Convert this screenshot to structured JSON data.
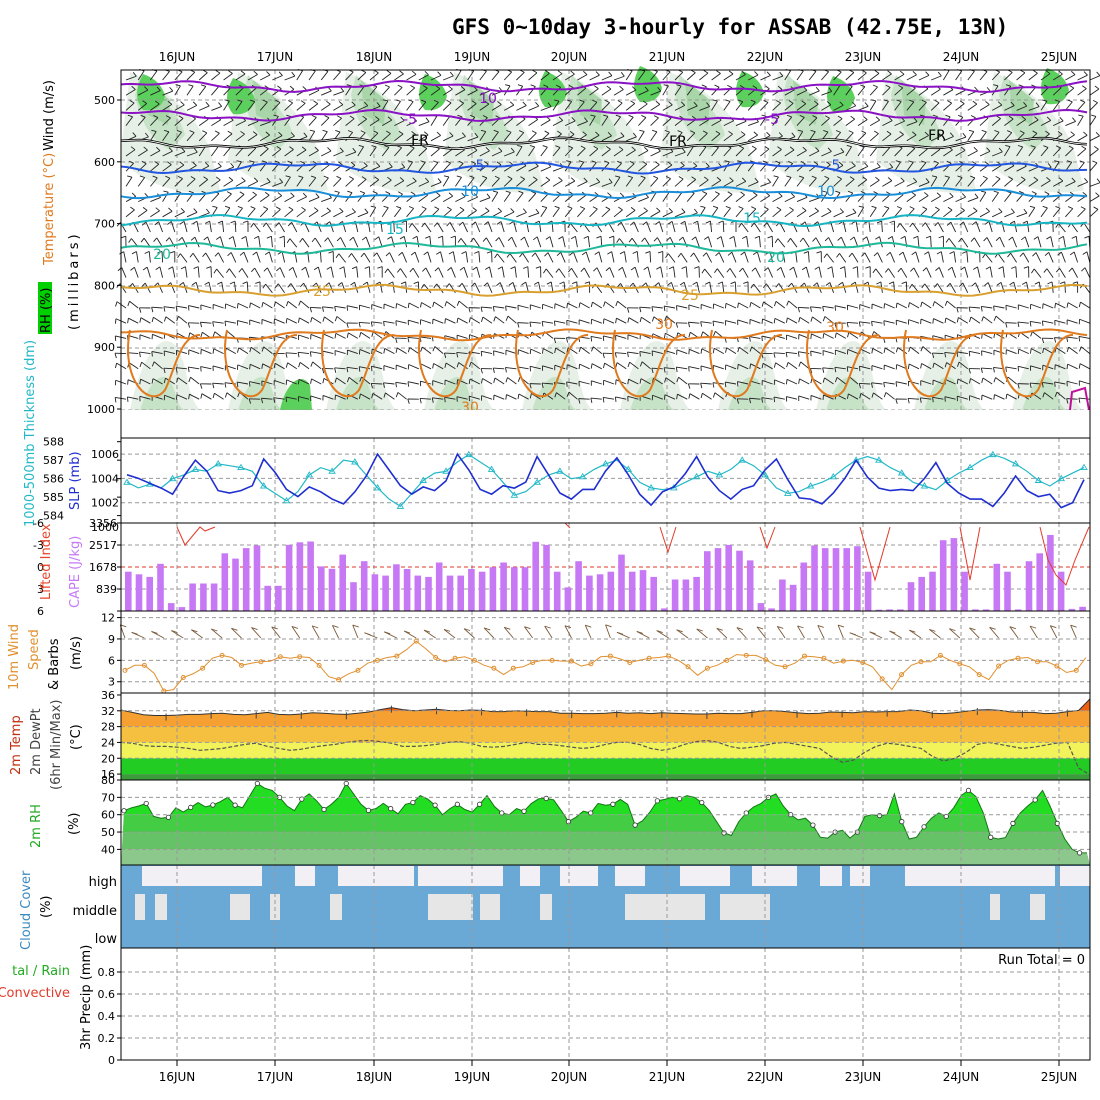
{
  "title": "GFS 0~10day 3-hourly for ASSAB (42.75E, 13N)",
  "dates": [
    "16JUN",
    "17JUN",
    "18JUN",
    "19JUN",
    "20JUN",
    "21JUN",
    "22JUN",
    "23JUN",
    "24JUN",
    "25JUN"
  ],
  "run_total_label": "Run Total = 0",
  "colors": {
    "rh_green": "#00d000",
    "t_orange": "#e07a1e",
    "t_cyan": "#17b5c4",
    "t_blue": "#2255e0",
    "t_purple": "#8a12c4",
    "slp_blue": "#1f2fcf",
    "thk_cyan": "#22b8c8",
    "cape_purple": "#c779f5",
    "li_red": "#e23a2a",
    "wind_orange": "#e09030",
    "rh2_green": "#22dd22",
    "cloud_blue": "#6aa9d6",
    "cloud_white": "#f2f0f5",
    "cloud_gray": "#e6e6e6"
  },
  "chart_data": [
    {
      "type": "heatmap",
      "panel": "upper-air",
      "labels": {
        "wind": "Wind (m/s)",
        "temp": "Temperature (°C)",
        "rh": "RH (%)",
        "y": "(millibars)"
      },
      "y_ticks": [
        500,
        600,
        700,
        800,
        900,
        1000
      ],
      "ylim": [
        1000,
        440
      ],
      "isotherms": [
        {
          "label": "-10",
          "pressure": 478,
          "color": "#8a12c4"
        },
        {
          "label": "-5",
          "pressure": 525,
          "color": "#8a12c4"
        },
        {
          "label": "FR",
          "pressure": 570,
          "color": "#000000"
        },
        {
          "label": "5",
          "pressure": 610,
          "color": "#2255e0"
        },
        {
          "label": "10",
          "pressure": 650,
          "color": "#1a8ed8"
        },
        {
          "label": "15",
          "pressure": 695,
          "color": "#17b5c4"
        },
        {
          "label": "20",
          "pressure": 740,
          "color": "#20b89a"
        },
        {
          "label": "25",
          "pressure": 808,
          "color": "#d9a030"
        },
        {
          "label": "30",
          "pressure": 880,
          "color": "#e07a1e"
        }
      ],
      "contour_labels": [
        "10",
        "-5",
        "FR",
        "5",
        "10",
        "15",
        "20",
        "25",
        "30",
        "30",
        "30"
      ]
    },
    {
      "type": "line",
      "panel": "slp-thickness",
      "labels": {
        "left": "1000-500mb Thickness (dm)",
        "right": "SLP (mb)"
      },
      "thickness_ticks": [
        584,
        585,
        586,
        587,
        588
      ],
      "slp_ticks": [
        1000,
        1002,
        1004,
        1006
      ],
      "series": [
        {
          "name": "SLP (mb)",
          "values": [
            1004.3,
            1004.0,
            1003.6,
            1003.2,
            1002.7,
            1004.2,
            1005.5,
            1004.6,
            1003.0,
            1002.8,
            1003.0,
            1003.4,
            1005.6,
            1004.5,
            1003.1,
            1002.5,
            1003.3,
            1002.9,
            1002.3,
            1001.9,
            1002.9,
            1004.2,
            1006.0,
            1004.7,
            1003.4,
            1002.7,
            1003.3,
            1003.0,
            1003.8,
            1006.0,
            1004.7,
            1003.1,
            1002.7,
            1003.4,
            1003.2,
            1003.7,
            1005.8,
            1004.3,
            1002.8,
            1002.3,
            1003.1,
            1003.1,
            1004.6,
            1005.7,
            1004.3,
            1002.7,
            1001.8,
            1002.9,
            1003.3,
            1004.4,
            1005.8,
            1004.1,
            1003.0,
            1002.3,
            1003.1,
            1003.4,
            1004.7,
            1005.6,
            1003.9,
            1002.4,
            1002.3,
            1001.9,
            1002.8,
            1004.0,
            1005.5,
            1004.1,
            1003.2,
            1003.0,
            1003.1,
            1003.0,
            1004.0,
            1005.3,
            1003.6,
            1002.8,
            1002.3,
            1002.3,
            1001.7,
            1002.8,
            1004.2,
            1003.0,
            1002.5,
            1002.7,
            1001.6,
            1002.0,
            1003.9
          ]
        },
        {
          "name": "1000-500mb Thickness (dm)",
          "values": [
            585.8,
            585.5,
            585.7,
            585.5,
            586.0,
            586.2,
            586.5,
            586.4,
            586.8,
            586.7,
            586.6,
            586.4,
            585.6,
            585.2,
            584.8,
            585.3,
            586.2,
            586.6,
            586.4,
            587.0,
            586.9,
            586.2,
            585.5,
            584.9,
            584.5,
            585.2,
            585.9,
            586.3,
            586.4,
            586.9,
            587.3,
            586.9,
            586.5,
            585.8,
            585.1,
            585.3,
            585.8,
            586.2,
            586.4,
            586.0,
            586.1,
            586.5,
            586.8,
            587.0,
            586.5,
            585.8,
            585.5,
            585.4,
            585.5,
            585.8,
            586.1,
            586.4,
            586.2,
            586.5,
            587.0,
            586.7,
            586.2,
            585.5,
            585.2,
            585.3,
            585.6,
            585.8,
            586.1,
            586.6,
            587.0,
            587.2,
            587.0,
            586.6,
            586.3,
            585.8,
            585.6,
            585.4,
            585.9,
            586.3,
            586.6,
            587.0,
            587.3,
            587.1,
            586.8,
            586.4,
            585.9,
            585.6,
            586.0,
            586.3,
            586.6
          ]
        }
      ]
    },
    {
      "type": "bar",
      "panel": "cape-li",
      "labels": {
        "left": "Lifted Index",
        "right": "CAPE (J/kg)"
      },
      "li_ticks": [
        -6,
        -3,
        0,
        3,
        6
      ],
      "cape_ticks": [
        839,
        1678,
        2517,
        3356
      ],
      "cape_values": [
        1500,
        1400,
        1300,
        1800,
        300,
        150,
        1050,
        1050,
        1050,
        2200,
        2000,
        2400,
        2500,
        960,
        960,
        2520,
        2620,
        2650,
        1700,
        1610,
        2150,
        1100,
        1900,
        1400,
        1350,
        1780,
        1600,
        1350,
        1300,
        1850,
        1350,
        1350,
        1600,
        1500,
        1670,
        1850,
        1670,
        1670,
        2640,
        2520,
        1500,
        900,
        1900,
        1350,
        1400,
        1500,
        2150,
        1500,
        1560,
        1300,
        100,
        1200,
        1200,
        1300,
        2280,
        2400,
        2520,
        2300,
        1930,
        300,
        100,
        1200,
        1000,
        1850,
        2500,
        2400,
        2400,
        2400,
        2470,
        1500,
        50,
        60,
        60,
        1100,
        1300,
        1500,
        2700,
        2780,
        1500,
        60,
        60,
        1800,
        1500,
        60,
        1900,
        2200,
        2900,
        1500,
        80,
        160
      ]
    },
    {
      "type": "line",
      "panel": "wind10m",
      "labels": {
        "y": "10m Wind Speed & Barbs (m/s)"
      },
      "y_ticks": [
        3,
        6,
        9,
        12
      ],
      "series": [
        {
          "name": "10m Wind Speed (m/s)",
          "values": [
            4.6,
            5.3,
            5.3,
            4.2,
            1.7,
            1.9,
            3.6,
            4.1,
            4.9,
            6.3,
            6.7,
            6.4,
            5.3,
            5.6,
            5.8,
            5.9,
            6.5,
            6.3,
            6.5,
            6.4,
            5.3,
            3.7,
            3.3,
            4.1,
            4.6,
            5.6,
            6.0,
            6.4,
            6.6,
            7.5,
            8.7,
            7.6,
            6.4,
            5.8,
            6.3,
            6.5,
            6.0,
            5.3,
            4.9,
            4.0,
            4.9,
            5.1,
            5.7,
            6.0,
            6.0,
            5.9,
            5.9,
            5.2,
            5.5,
            6.5,
            6.6,
            6.2,
            5.7,
            6.0,
            6.3,
            6.4,
            6.6,
            6.0,
            5.1,
            3.9,
            4.9,
            5.3,
            6.0,
            6.8,
            6.7,
            6.7,
            6.1,
            5.3,
            5.1,
            5.6,
            6.6,
            6.5,
            6.3,
            5.6,
            5.9,
            6.0,
            5.7,
            5.1,
            3.4,
            1.9,
            4.0,
            5.3,
            5.8,
            5.8,
            6.7,
            6.0,
            5.5,
            5.1,
            4.0,
            3.3,
            5.2,
            6.0,
            6.3,
            6.4,
            5.8,
            5.8,
            5.2,
            4.3,
            4.6,
            6.4
          ]
        }
      ]
    },
    {
      "type": "area",
      "panel": "temp2m",
      "labels": {
        "y": "2m Temp 2m DewPt (6hr Min/Max) (°C)"
      },
      "y_ticks": [
        16,
        20,
        24,
        28,
        32,
        36
      ],
      "series": [
        {
          "name": "2m Temp (°C)",
          "values": [
            32.2,
            31.6,
            31.0,
            30.8,
            30.8,
            30.9,
            31.1,
            31.1,
            31.3,
            31.4,
            31.1,
            31.0,
            31.3,
            31.6,
            31.1,
            31.0,
            31.2,
            31.5,
            31.4,
            31.2,
            31.1,
            31.4,
            31.7,
            32.3,
            32.8,
            32.3,
            32.0,
            32.2,
            32.4,
            32.1,
            32.0,
            32.2,
            32.1,
            31.8,
            31.8,
            32.0,
            31.9,
            31.8,
            31.8,
            31.4,
            31.4,
            31.3,
            31.3,
            31.4,
            31.6,
            31.4,
            31.5,
            31.3,
            31.5,
            31.4,
            31.3,
            31.2,
            31.2,
            31.4,
            31.3,
            31.3,
            31.6,
            32.0,
            32.0,
            31.8,
            31.5,
            31.3,
            31.4,
            31.7,
            31.6,
            31.5,
            31.8,
            31.7,
            31.8,
            31.8,
            32.2,
            32.0,
            31.4,
            31.3,
            31.5,
            31.9,
            32.2,
            32.3,
            32.1,
            31.7,
            31.6,
            31.6,
            31.3,
            31.4,
            31.8,
            32.1,
            35.0
          ]
        },
        {
          "name": "2m DewPt (°C)",
          "values": [
            24.0,
            23.8,
            23.2,
            23.0,
            23.0,
            22.8,
            22.5,
            22.0,
            22.2,
            22.5,
            23.0,
            23.5,
            23.8,
            23.0,
            22.5,
            22.0,
            22.3,
            22.8,
            23.2,
            23.5,
            24.0,
            24.4,
            24.5,
            24.2,
            23.8,
            23.0,
            23.0,
            23.2,
            23.5,
            24.0,
            24.2,
            23.8,
            23.0,
            22.8,
            23.0,
            23.5,
            24.0,
            23.5,
            23.5,
            23.2,
            22.8,
            22.5,
            22.8,
            23.5,
            24.0,
            24.0,
            23.5,
            22.5,
            22.0,
            22.5,
            23.5,
            24.2,
            24.5,
            24.0,
            23.0,
            22.5,
            22.8,
            23.2,
            23.8,
            24.0,
            23.5,
            23.0,
            22.5,
            20.5,
            19.0,
            19.5,
            21.5,
            23.0,
            23.8,
            23.5,
            23.0,
            22.5,
            20.5,
            19.3,
            20.0,
            21.5,
            23.5,
            24.0,
            23.5,
            23.0,
            22.5,
            22.8,
            23.3,
            23.8,
            24.0,
            17.5,
            15.8
          ]
        }
      ]
    },
    {
      "type": "area",
      "panel": "rh2m",
      "labels": {
        "y": "2m RH (%)"
      },
      "y_ticks": [
        40,
        50,
        60,
        70,
        80
      ],
      "series": [
        {
          "name": "2m RH (%)",
          "values": [
            62.3,
            64.0,
            65.0,
            66.5,
            59.0,
            58.0,
            58.5,
            64.0,
            61.5,
            64.2,
            67.0,
            64.5,
            65.6,
            67.5,
            70.0,
            65.5,
            64.0,
            71.0,
            78.0,
            75.3,
            74.0,
            70.0,
            65.0,
            62.3,
            69.0,
            72.0,
            68.0,
            63.0,
            66.0,
            70.0,
            78.0,
            72.0,
            66.0,
            62.5,
            63.5,
            66.5,
            63.5,
            60.5,
            66.0,
            67.0,
            71.0,
            69.0,
            65.5,
            60.0,
            63.5,
            66.0,
            63.0,
            61.5,
            66.0,
            71.0,
            64.8,
            61.0,
            60.0,
            63.5,
            62.0,
            66.5,
            69.2,
            69.4,
            68.6,
            62.5,
            56.0,
            58.5,
            62.0,
            61.0,
            66.5,
            65.5,
            66.0,
            68.8,
            66.0,
            54.0,
            56.5,
            61.5,
            68.0,
            68.8,
            70.0,
            69.2,
            71.0,
            70.0,
            67.0,
            62.5,
            56.0,
            49.5,
            48.0,
            56.0,
            61.0,
            64.5,
            66.5,
            70.0,
            72.0,
            65.0,
            60.0,
            57.0,
            58.0,
            54.0,
            47.0,
            46.5,
            50.0,
            51.0,
            46.5,
            50.0,
            59.0,
            60.0,
            59.5,
            60.0,
            72.0,
            56.0,
            46.0,
            47.0,
            53.0,
            58.0,
            61.0,
            59.0,
            64.0,
            71.0,
            74.0,
            70.5,
            61.0,
            47.0,
            46.0,
            46.8,
            55.0,
            61.0,
            65.0,
            68.5,
            74.0,
            65.0,
            55.0,
            46.0,
            40.0,
            38.0,
            38.0
          ]
        }
      ]
    },
    {
      "type": "heatmap",
      "panel": "cloud",
      "labels": {
        "y": "Cloud Cover (%)"
      },
      "rows": [
        "high",
        "middle",
        "low"
      ]
    },
    {
      "type": "bar",
      "panel": "precip",
      "labels": {
        "left": "Total / Rain",
        "left2": "Convective",
        "y": "3hr Precip (mm)"
      },
      "y_ticks": [
        0,
        0.2,
        0.4,
        0.6,
        0.8
      ],
      "values": []
    }
  ]
}
